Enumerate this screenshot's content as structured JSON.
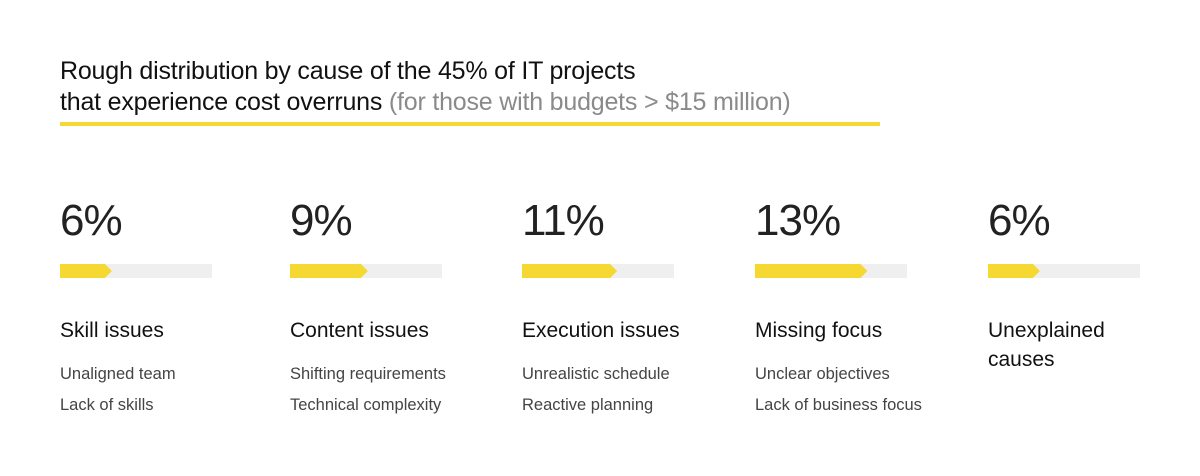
{
  "title": {
    "line1": "Rough distribution by cause of the 45% of IT projects",
    "line2_main": "that experience cost overruns",
    "line2_sub": "(for those with budgets > $15 million)"
  },
  "colors": {
    "accent": "#f5d831",
    "track": "#efefef"
  },
  "chart_data": {
    "type": "bar",
    "title": "Rough distribution by cause of the 45% of IT projects that experience cost overruns (for those with budgets > $15 million)",
    "categories": [
      "Skill issues",
      "Content issues",
      "Execution issues",
      "Missing focus",
      "Unexplained causes"
    ],
    "values": [
      6,
      9,
      11,
      13,
      6
    ],
    "unit": "%",
    "items": [
      {
        "label": "6%",
        "value": 6,
        "heading": "Skill issues",
        "details": [
          "Unaligned team",
          "Lack of skills"
        ]
      },
      {
        "label": "9%",
        "value": 9,
        "heading": "Content issues",
        "details": [
          "Shifting requirements",
          "Technical complexity"
        ]
      },
      {
        "label": "11%",
        "value": 11,
        "heading": "Execution issues",
        "details": [
          "Unrealistic schedule",
          "Reactive planning"
        ]
      },
      {
        "label": "13%",
        "value": 13,
        "heading": "Missing focus",
        "details": [
          "Unclear objectives",
          "Lack of business focus"
        ]
      },
      {
        "label": "6%",
        "value": 6,
        "heading": "Unexplained causes",
        "details": []
      }
    ]
  }
}
